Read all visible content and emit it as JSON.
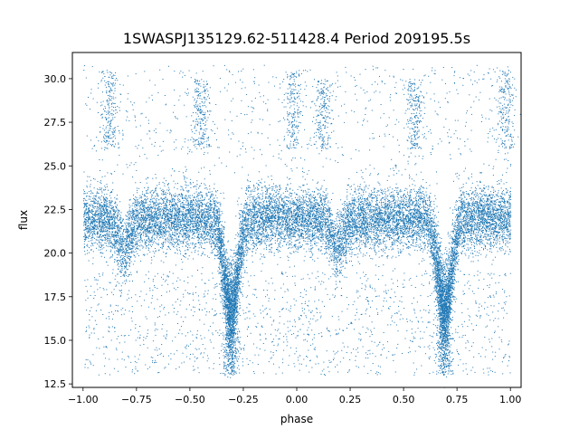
{
  "chart_data": {
    "type": "scatter",
    "title": "1SWASPJ135129.62-511428.4 Period 209195.5s",
    "xlabel": "phase",
    "ylabel": "flux",
    "xlim": [
      -1.05,
      1.05
    ],
    "ylim": [
      12.3,
      31.5
    ],
    "xticks": [
      -1.0,
      -0.75,
      -0.5,
      -0.25,
      0.0,
      0.25,
      0.5,
      0.75,
      1.0
    ],
    "xtick_labels": [
      "−1.00",
      "−0.75",
      "−0.50",
      "−0.25",
      "0.00",
      "0.25",
      "0.50",
      "0.75",
      "1.00"
    ],
    "yticks": [
      12.5,
      15.0,
      17.5,
      20.0,
      22.5,
      25.0,
      27.5,
      30.0
    ],
    "ytick_labels": [
      "12.5",
      "15.0",
      "17.5",
      "20.0",
      "22.5",
      "25.0",
      "27.5",
      "30.0"
    ],
    "grid": false,
    "legend": "none",
    "color": "#1f77b4",
    "phase_range": [
      -1.0,
      1.0
    ],
    "baseline_flux": 22.0,
    "baseline_spread": 0.9,
    "primary_minima": [
      {
        "phase": -0.31,
        "flux": 16.6
      },
      {
        "phase": 0.69,
        "flux": 16.6
      }
    ],
    "secondary_minima": [
      {
        "phase": -0.81,
        "flux": 20.4
      },
      {
        "phase": 0.19,
        "flux": 20.4
      }
    ],
    "high_outlier_clusters": [
      {
        "phase": -0.88,
        "flux": [
          26.0,
          30.5
        ]
      },
      {
        "phase": -0.45,
        "flux": [
          26.0,
          30.0
        ]
      },
      {
        "phase": -0.02,
        "flux": [
          26.0,
          30.5
        ]
      },
      {
        "phase": 0.12,
        "flux": [
          26.0,
          30.0
        ]
      },
      {
        "phase": 0.55,
        "flux": [
          26.0,
          30.0
        ]
      },
      {
        "phase": 0.98,
        "flux": [
          26.0,
          30.5
        ]
      }
    ],
    "low_outlier_range": [
      13.0,
      19.0
    ]
  }
}
